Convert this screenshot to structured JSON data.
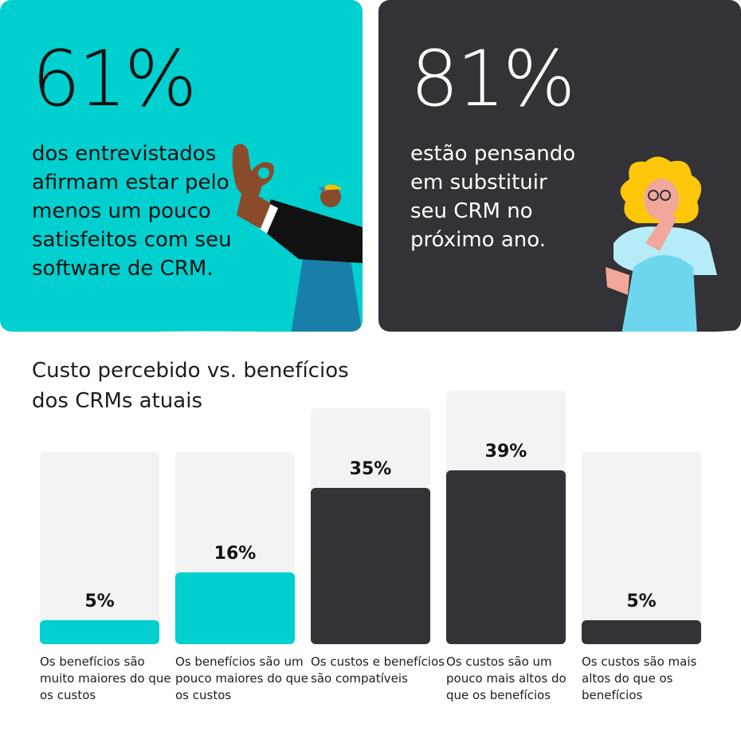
{
  "stat_left": {
    "value": "61%",
    "text": "dos entrevistados afirmam estar pelo menos um pouco satisfeitos com seu software de CRM."
  },
  "stat_right": {
    "value": "81%",
    "text": "estão pensando em substituir seu CRM no próximo ano."
  },
  "colors": {
    "teal": "#00d0cf",
    "dark": "#333236",
    "track": "#f2f3f5"
  },
  "chart_data": {
    "type": "bar",
    "title": "Custo percebido vs. benefícios dos CRMs atuais",
    "categories": [
      "Os benefícios são muito maiores do que os custos",
      "Os benefícios são um pouco maiores do que os custos",
      "Os custos e benefícios são compatíveis",
      "Os custos são um pouco mais altos do que os benefícios",
      "Os custos são mais altos do que os benefícios"
    ],
    "values": [
      5,
      16,
      35,
      39,
      5
    ],
    "value_labels": [
      "5%",
      "16%",
      "35%",
      "39%",
      "5%"
    ],
    "bar_colors": [
      "#00d0cf",
      "#00d0cf",
      "#333236",
      "#333236",
      "#333236"
    ],
    "xlabel": "",
    "ylabel": "",
    "grid": false
  }
}
